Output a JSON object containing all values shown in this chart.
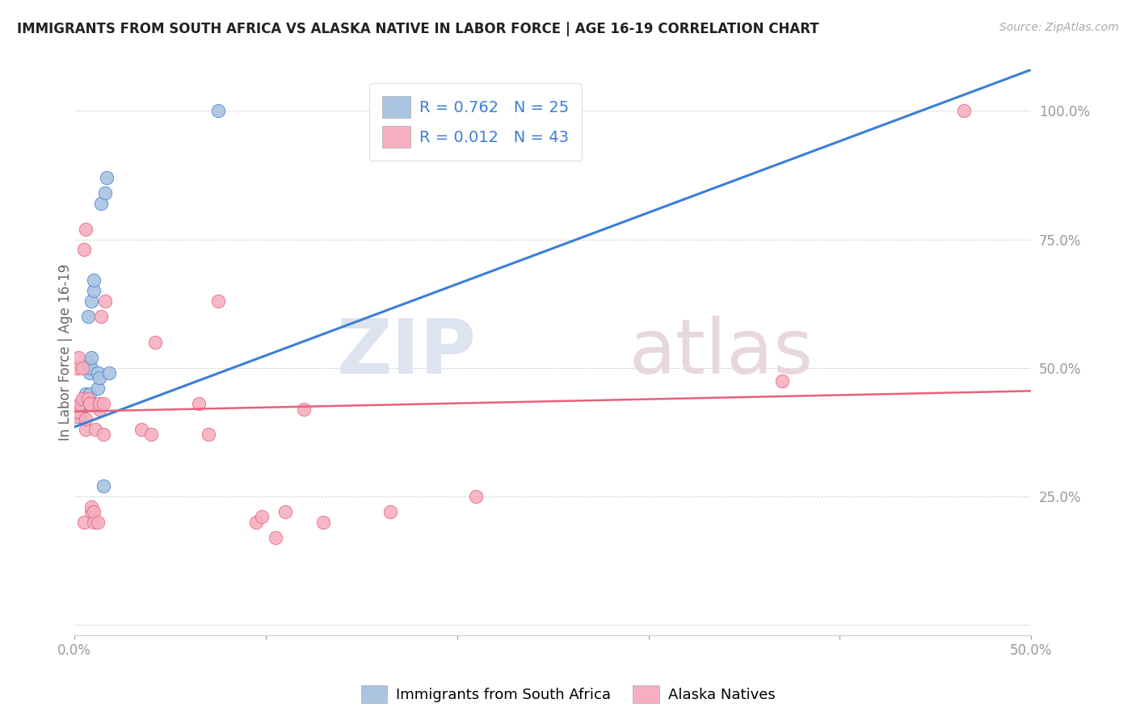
{
  "title": "IMMIGRANTS FROM SOUTH AFRICA VS ALASKA NATIVE IN LABOR FORCE | AGE 16-19 CORRELATION CHART",
  "source": "Source: ZipAtlas.com",
  "ylabel": "In Labor Force | Age 16-19",
  "xlim": [
    0.0,
    0.5
  ],
  "ylim": [
    -0.02,
    1.08
  ],
  "xticks": [
    0.0,
    0.1,
    0.2,
    0.3,
    0.4,
    0.5
  ],
  "xticklabels": [
    "0.0%",
    "",
    "",
    "",
    "",
    "50.0%"
  ],
  "yticks": [
    0.0,
    0.25,
    0.5,
    0.75,
    1.0
  ],
  "yticklabels": [
    "",
    "25.0%",
    "50.0%",
    "75.0%",
    "100.0%"
  ],
  "legend_r1": "R = 0.762",
  "legend_n1": "N = 25",
  "legend_r2": "R = 0.012",
  "legend_n2": "N = 43",
  "color_blue": "#aac4e2",
  "color_pink": "#f5afc0",
  "line_blue": "#3b7fd4",
  "line_pink": "#e8607a",
  "watermark_zip": "ZIP",
  "watermark_atlas": "atlas",
  "background": "#ffffff",
  "blue_x": [
    0.003,
    0.003,
    0.003,
    0.004,
    0.005,
    0.006,
    0.006,
    0.007,
    0.007,
    0.008,
    0.008,
    0.009,
    0.009,
    0.009,
    0.01,
    0.01,
    0.012,
    0.012,
    0.013,
    0.014,
    0.015,
    0.016,
    0.017,
    0.018,
    0.075
  ],
  "blue_y": [
    0.405,
    0.415,
    0.425,
    0.43,
    0.44,
    0.45,
    0.5,
    0.51,
    0.6,
    0.45,
    0.49,
    0.5,
    0.52,
    0.63,
    0.65,
    0.67,
    0.46,
    0.49,
    0.48,
    0.82,
    0.27,
    0.84,
    0.87,
    0.49,
    1.0
  ],
  "pink_x": [
    0.001,
    0.001,
    0.001,
    0.002,
    0.003,
    0.004,
    0.004,
    0.005,
    0.005,
    0.006,
    0.006,
    0.006,
    0.007,
    0.008,
    0.008,
    0.009,
    0.009,
    0.01,
    0.01,
    0.011,
    0.012,
    0.013,
    0.013,
    0.014,
    0.015,
    0.015,
    0.016,
    0.035,
    0.04,
    0.042,
    0.065,
    0.07,
    0.075,
    0.095,
    0.098,
    0.105,
    0.11,
    0.12,
    0.13,
    0.165,
    0.21,
    0.37,
    0.465
  ],
  "pink_y": [
    0.405,
    0.415,
    0.5,
    0.52,
    0.43,
    0.44,
    0.5,
    0.2,
    0.73,
    0.38,
    0.4,
    0.77,
    0.44,
    0.43,
    0.43,
    0.22,
    0.23,
    0.2,
    0.22,
    0.38,
    0.2,
    0.42,
    0.43,
    0.6,
    0.43,
    0.37,
    0.63,
    0.38,
    0.37,
    0.55,
    0.43,
    0.37,
    0.63,
    0.2,
    0.21,
    0.17,
    0.22,
    0.42,
    0.2,
    0.22,
    0.25,
    0.475,
    1.0
  ],
  "blue_trend_x": [
    0.0,
    0.5
  ],
  "blue_trend_y": [
    0.385,
    1.08
  ],
  "pink_trend_x": [
    0.0,
    0.5
  ],
  "pink_trend_y": [
    0.415,
    0.455
  ]
}
